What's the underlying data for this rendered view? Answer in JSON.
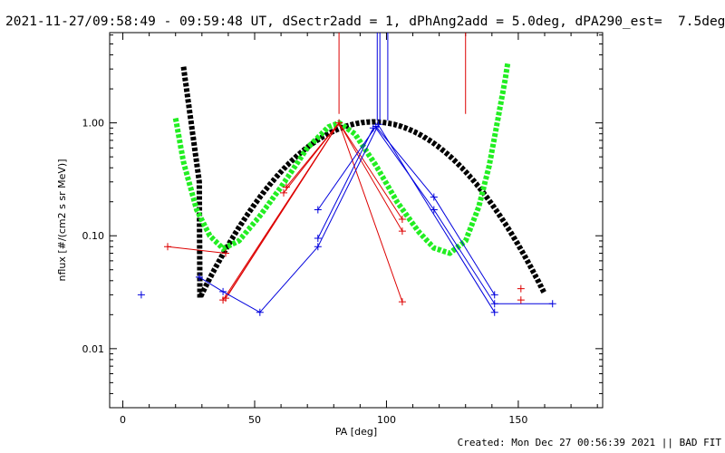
{
  "title": "2021-11-27/09:58:49 - 09:59:48 UT, dSectr2add = 1, dPhAng2add = 5.0deg, dPA290_est=  7.5deg",
  "footer": "Created: Mon Dec 27 00:56:39 2021 || BAD FIT",
  "chart_data": {
    "type": "scatter",
    "title": "2021-11-27/09:58:49 - 09:59:48 UT, dSectr2add = 1, dPhAng2add = 5.0deg, dPA290_est=  7.5deg",
    "xlabel": "PA [deg]",
    "ylabel": "nflux [#/(cm2 s sr MeV)]",
    "xlim": [
      -5,
      182
    ],
    "ylim": [
      0.003,
      6.3
    ],
    "yscale": "log",
    "xticks": [
      0,
      50,
      100,
      150
    ],
    "yticks": [
      0.01,
      0.1,
      1.0
    ],
    "xtick_labels": [
      "0",
      "50",
      "100",
      "150"
    ],
    "ytick_labels": [
      "0.01",
      "0.10",
      "1.00"
    ],
    "grid": false,
    "colors": {
      "red": "#dd0000",
      "blue": "#0000dd",
      "green": "#22ee22",
      "black": "#000000"
    },
    "fit_curves": [
      {
        "name": "black-fit",
        "color": "#000000",
        "x_range": [
          23,
          160
        ],
        "style": "thick-dashed"
      },
      {
        "name": "green-fit",
        "color": "#22ee22",
        "x_range": [
          20,
          146
        ],
        "style": "thick-dashed"
      }
    ],
    "vertical_markers": [
      {
        "x": 82,
        "y_bottom": 1.2,
        "y_top": 6.3,
        "color": "#dd0000"
      },
      {
        "x": 130,
        "y_bottom": 1.2,
        "y_top": 6.3,
        "color": "#dd0000"
      },
      {
        "x": 96.5,
        "y_bottom": 1.05,
        "y_top": 6.3,
        "color": "#0000dd"
      },
      {
        "x": 97.5,
        "y_bottom": 1.05,
        "y_top": 6.3,
        "color": "#0000dd"
      },
      {
        "x": 100.5,
        "y_bottom": 1.05,
        "y_top": 6.3,
        "color": "#0000dd"
      }
    ],
    "red_lines": [
      {
        "from": [
          38,
          0.027
        ],
        "to": [
          82,
          1.0
        ]
      },
      {
        "from": [
          39,
          0.028
        ],
        "to": [
          82,
          1.0
        ]
      },
      {
        "from": [
          40,
          0.03
        ],
        "to": [
          82,
          1.0
        ]
      },
      {
        "from": [
          61,
          0.24
        ],
        "to": [
          82,
          1.0
        ]
      },
      {
        "from": [
          62,
          0.27
        ],
        "to": [
          82,
          1.0
        ]
      },
      {
        "from": [
          17,
          0.08
        ],
        "to": [
          39,
          0.07
        ]
      },
      {
        "from": [
          82,
          1.0
        ],
        "to": [
          106,
          0.026
        ]
      },
      {
        "from": [
          82,
          1.0
        ],
        "to": [
          106,
          0.11
        ]
      },
      {
        "from": [
          82,
          1.0
        ],
        "to": [
          106,
          0.14
        ]
      }
    ],
    "blue_lines": [
      {
        "from": [
          29,
          0.043
        ],
        "to": [
          38,
          0.032
        ]
      },
      {
        "from": [
          38,
          0.032
        ],
        "to": [
          52,
          0.021
        ]
      },
      {
        "from": [
          52,
          0.021
        ],
        "to": [
          74,
          0.08
        ]
      },
      {
        "from": [
          74,
          0.17
        ],
        "to": [
          96,
          0.93
        ]
      },
      {
        "from": [
          74,
          0.095
        ],
        "to": [
          95,
          0.9
        ]
      },
      {
        "from": [
          74,
          0.08
        ],
        "to": [
          97,
          0.97
        ]
      },
      {
        "from": [
          96,
          0.93
        ],
        "to": [
          118,
          0.22
        ]
      },
      {
        "from": [
          96,
          0.9
        ],
        "to": [
          118,
          0.17
        ]
      },
      {
        "from": [
          97,
          0.95
        ],
        "to": [
          141,
          0.021
        ]
      },
      {
        "from": [
          118,
          0.22
        ],
        "to": [
          141,
          0.03
        ]
      },
      {
        "from": [
          118,
          0.17
        ],
        "to": [
          141,
          0.025
        ]
      },
      {
        "from": [
          141,
          0.025
        ],
        "to": [
          163,
          0.025
        ]
      }
    ],
    "red_points": [
      [
        17,
        0.08
      ],
      [
        39,
        0.07
      ],
      [
        38,
        0.027
      ],
      [
        39,
        0.028
      ],
      [
        61,
        0.24
      ],
      [
        62,
        0.27
      ],
      [
        82,
        1.0
      ],
      [
        106,
        0.14
      ],
      [
        106,
        0.11
      ],
      [
        106,
        0.026
      ],
      [
        151,
        0.034
      ],
      [
        151,
        0.027
      ]
    ],
    "blue_points": [
      [
        7,
        0.03
      ],
      [
        29,
        0.043
      ],
      [
        38,
        0.032
      ],
      [
        52,
        0.021
      ],
      [
        74,
        0.17
      ],
      [
        74,
        0.095
      ],
      [
        74,
        0.08
      ],
      [
        96,
        0.93
      ],
      [
        95,
        0.9
      ],
      [
        97,
        0.97
      ],
      [
        118,
        0.22
      ],
      [
        118,
        0.17
      ],
      [
        141,
        0.03
      ],
      [
        141,
        0.025
      ],
      [
        141,
        0.021
      ],
      [
        163,
        0.025
      ]
    ]
  }
}
